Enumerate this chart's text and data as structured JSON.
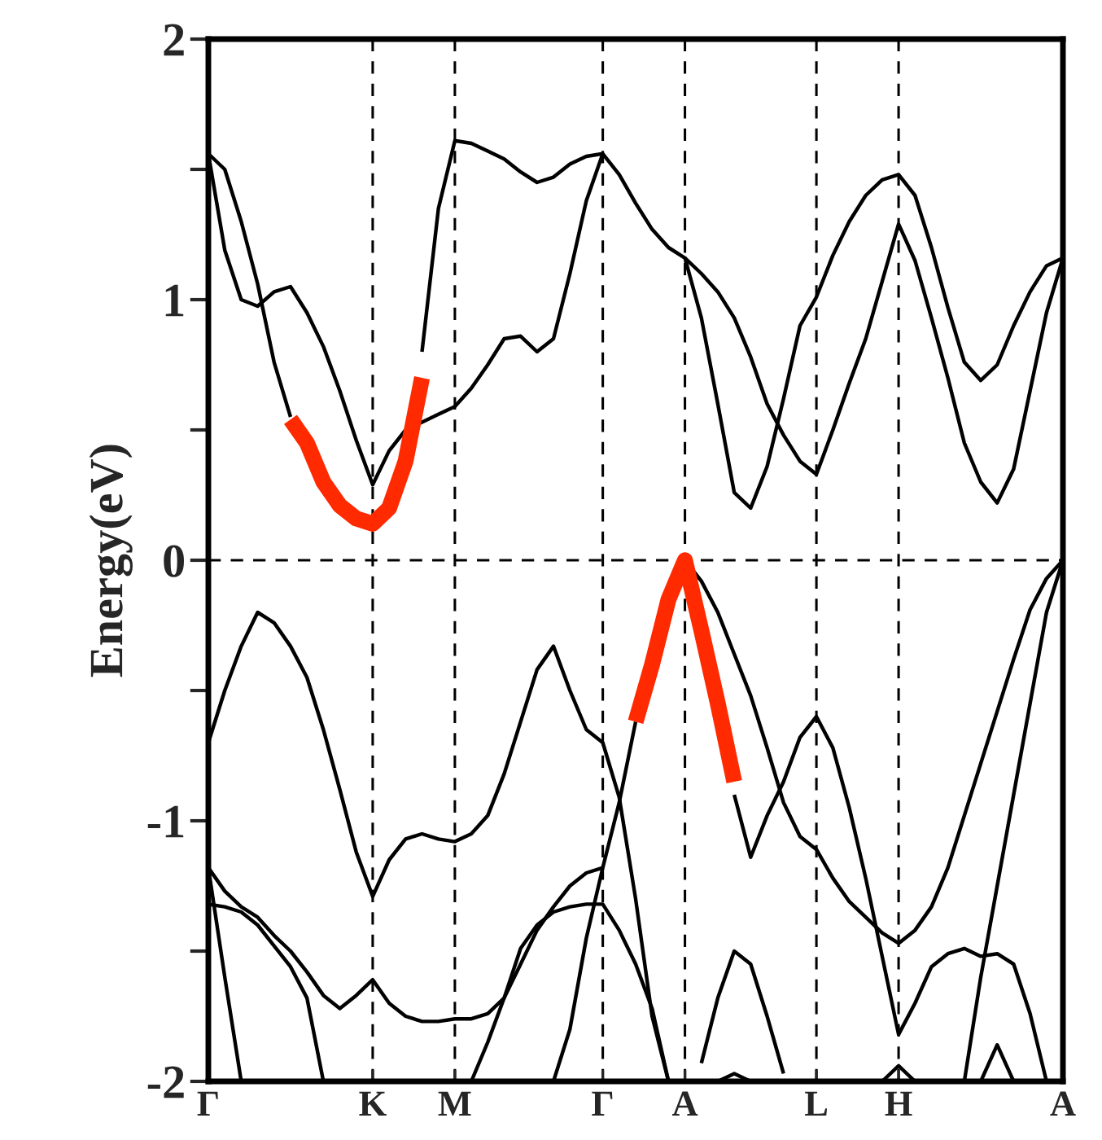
{
  "chart_data": {
    "type": "line",
    "ylabel": "Energy(eV)",
    "categories": [
      "Γ",
      null,
      null,
      null,
      null,
      null,
      null,
      null,
      null,
      null,
      "K",
      null,
      null,
      null,
      null,
      "M",
      null,
      null,
      null,
      null,
      null,
      null,
      null,
      null,
      "Γ",
      null,
      null,
      null,
      null,
      "A",
      null,
      null,
      null,
      null,
      null,
      null,
      null,
      "L",
      null,
      null,
      null,
      null,
      "H",
      null,
      null,
      null,
      null,
      null,
      null,
      null,
      null,
      null,
      "A"
    ],
    "ylim": [
      -2,
      2
    ],
    "yticks": [
      -2,
      {
        "value": -1.5,
        "label": null
      },
      -1,
      {
        "value": -0.5,
        "label": null
      },
      0,
      {
        "value": 0.5,
        "label": null
      },
      1,
      {
        "value": 1.5,
        "label": null
      },
      2
    ],
    "grid": "x",
    "line_style": "solid",
    "ref_lines": [
      {
        "axis": "y",
        "value": 0,
        "color": "#000000",
        "line_style": "dashed"
      }
    ],
    "series": [
      {
        "color": "#000000",
        "values": [
          1.56,
          1.19,
          1.0,
          0.975,
          1.03,
          1.05,
          0.95,
          0.82,
          0.65,
          0.46,
          0.29,
          0.42,
          0.5,
          0.53,
          0.56,
          0.59,
          0.66,
          0.75,
          0.85,
          0.86,
          0.8,
          0.85,
          1.1,
          1.38,
          1.56,
          1.48,
          1.37,
          1.27,
          1.2,
          1.16,
          0.93,
          0.6,
          0.26,
          0.2,
          0.36,
          0.62,
          0.9,
          1.01,
          1.17,
          1.3,
          1.4,
          1.46,
          1.48,
          1.4,
          1.2,
          0.97,
          0.76,
          0.69,
          0.75,
          0.9,
          1.03,
          1.13,
          1.16
        ]
      },
      {
        "color": "#000000",
        "values": [
          1.56,
          1.5,
          1.3,
          1.06,
          0.76,
          0.55,
          null,
          null,
          null,
          null,
          null,
          null,
          null,
          0.8,
          1.35,
          1.61,
          1.6,
          1.57,
          1.54,
          1.49,
          1.45,
          1.47,
          1.52,
          1.55,
          1.56,
          null,
          null,
          null,
          null,
          1.16,
          1.1,
          1.03,
          0.93,
          0.78,
          0.6,
          0.48,
          0.38,
          0.33,
          0.5,
          0.68,
          0.85,
          1.07,
          1.29,
          1.15,
          0.93,
          0.7,
          0.45,
          0.3,
          0.22,
          0.35,
          0.65,
          0.95,
          1.16
        ]
      },
      {
        "color": "#000000",
        "values": [
          -0.7,
          -0.5,
          -0.33,
          -0.2,
          -0.24,
          -0.33,
          -0.45,
          -0.65,
          -0.88,
          -1.12,
          -1.29,
          -1.15,
          -1.07,
          -1.05,
          -1.07,
          -1.08,
          -1.05,
          -0.98,
          -0.82,
          -0.62,
          -0.42,
          -0.33,
          -0.5,
          -0.65,
          -0.7,
          -0.91,
          -1.3,
          -1.75,
          -2,
          null,
          null,
          null,
          null,
          null,
          null,
          null,
          null,
          null,
          null,
          null,
          null,
          null,
          null,
          null,
          null,
          null,
          null,
          null,
          null,
          null,
          null,
          null,
          null
        ]
      },
      {
        "color": "#000000",
        "values": [
          -1.18,
          -1.27,
          -1.33,
          -1.37,
          -1.44,
          -1.5,
          -1.58,
          -1.67,
          -1.72,
          -1.67,
          -1.61,
          -1.7,
          -1.75,
          -1.77,
          -1.77,
          -1.76,
          -1.76,
          -1.74,
          -1.68,
          -1.55,
          -1.42,
          -1.33,
          -1.25,
          -1.2,
          -1.18,
          null,
          null,
          null,
          null,
          null,
          null,
          null,
          null,
          null,
          null,
          null,
          null,
          null,
          null,
          null,
          null,
          null,
          null,
          null,
          null,
          null,
          null,
          null,
          null,
          null,
          null,
          null,
          null
        ]
      },
      {
        "color": "#000000",
        "values": [
          -1.32,
          -1.33,
          -1.35,
          -1.4,
          -1.48,
          -1.56,
          -1.68,
          -2,
          null,
          null,
          null,
          null,
          null,
          null,
          null,
          null,
          null,
          null,
          null,
          null,
          null,
          null,
          null,
          null,
          null,
          null,
          null,
          null,
          null,
          null,
          null,
          null,
          null,
          null,
          null,
          null,
          null,
          null,
          null,
          null,
          null,
          null,
          null,
          null,
          null,
          null,
          null,
          null,
          null,
          null,
          null,
          null,
          null
        ]
      },
      {
        "color": "#000000",
        "values": [
          null,
          null,
          null,
          null,
          null,
          null,
          null,
          null,
          null,
          null,
          null,
          null,
          null,
          null,
          null,
          null,
          -2,
          -1.85,
          -1.68,
          -1.49,
          -1.4,
          -1.35,
          -1.33,
          -1.32,
          -1.32,
          -1.42,
          -1.55,
          -1.72,
          -2,
          null,
          null,
          null,
          null,
          null,
          null,
          null,
          null,
          null,
          null,
          null,
          null,
          null,
          null,
          null,
          null,
          null,
          null,
          null,
          null,
          null,
          null,
          null,
          null
        ]
      },
      {
        "color": "#000000",
        "values": [
          -1.18,
          -1.6,
          -2,
          null,
          null,
          null,
          null,
          null,
          null,
          null,
          null,
          null,
          null,
          null,
          null,
          null,
          null,
          null,
          null,
          null,
          null,
          null,
          null,
          null,
          null,
          null,
          null,
          null,
          null,
          null,
          null,
          null,
          null,
          null,
          null,
          null,
          null,
          null,
          null,
          null,
          null,
          null,
          null,
          null,
          null,
          null,
          null,
          null,
          null,
          null,
          null,
          null,
          null
        ]
      },
      {
        "color": "#000000",
        "values": [
          null,
          null,
          null,
          null,
          null,
          null,
          null,
          null,
          null,
          null,
          null,
          null,
          null,
          null,
          null,
          null,
          null,
          null,
          null,
          null,
          null,
          -2,
          -1.8,
          -1.45,
          -1.18,
          -0.93,
          -0.62,
          null,
          null,
          null,
          null,
          null,
          null,
          null,
          null,
          null,
          null,
          null,
          null,
          null,
          null,
          null,
          null,
          null,
          null,
          null,
          null,
          null,
          null,
          null,
          null,
          null,
          null
        ]
      },
      {
        "color": "#000000",
        "values": [
          null,
          null,
          null,
          null,
          null,
          null,
          null,
          null,
          null,
          null,
          null,
          null,
          null,
          null,
          null,
          null,
          null,
          null,
          null,
          null,
          null,
          null,
          null,
          null,
          null,
          null,
          null,
          null,
          null,
          null,
          null,
          null,
          -0.9,
          -1.14,
          -0.98,
          -0.85,
          -0.68,
          -0.6,
          -0.72,
          -0.95,
          -1.22,
          -1.52,
          -1.82,
          -1.7,
          -1.56,
          -1.51,
          -1.49,
          -1.52,
          -1.51,
          -1.55,
          -1.74,
          -2,
          null
        ]
      },
      {
        "color": "#000000",
        "values": [
          null,
          null,
          null,
          null,
          null,
          null,
          null,
          null,
          null,
          null,
          null,
          null,
          null,
          null,
          null,
          null,
          null,
          null,
          null,
          null,
          null,
          null,
          null,
          null,
          null,
          null,
          null,
          null,
          null,
          0,
          -0.08,
          -0.2,
          -0.36,
          -0.52,
          -0.72,
          -0.93,
          -1.06,
          -1.11,
          -1.22,
          -1.31,
          -1.37,
          -1.43,
          -1.47,
          -1.42,
          -1.33,
          -1.18,
          -0.98,
          -0.78,
          -0.58,
          -0.38,
          -0.19,
          -0.07,
          0
        ]
      },
      {
        "color": "#000000",
        "values": [
          null,
          null,
          null,
          null,
          null,
          null,
          null,
          null,
          null,
          null,
          null,
          null,
          null,
          null,
          null,
          null,
          null,
          null,
          null,
          null,
          null,
          null,
          null,
          null,
          null,
          null,
          null,
          null,
          null,
          null,
          null,
          null,
          null,
          null,
          null,
          null,
          null,
          null,
          null,
          null,
          null,
          null,
          null,
          null,
          null,
          null,
          -2,
          -1.6,
          -1.25,
          -0.9,
          -0.55,
          -0.2,
          0
        ]
      },
      {
        "color": "#000000",
        "values": [
          null,
          null,
          null,
          null,
          null,
          null,
          null,
          null,
          null,
          null,
          null,
          null,
          null,
          null,
          null,
          null,
          null,
          null,
          null,
          null,
          null,
          null,
          null,
          null,
          null,
          null,
          null,
          null,
          null,
          null,
          -1.93,
          -1.68,
          -1.5,
          -1.55,
          -1.75,
          -1.97,
          null,
          null,
          null,
          null,
          null,
          null,
          null,
          null,
          null,
          null,
          null,
          null,
          null,
          null,
          null,
          null,
          null
        ]
      },
      {
        "color": "#000000",
        "values": [
          null,
          null,
          null,
          null,
          null,
          null,
          null,
          null,
          null,
          null,
          null,
          null,
          null,
          null,
          null,
          null,
          null,
          null,
          null,
          null,
          null,
          null,
          null,
          null,
          null,
          null,
          null,
          null,
          null,
          null,
          null,
          -2,
          -1.97,
          -2,
          null,
          null,
          null,
          null,
          null,
          null,
          null,
          null,
          null,
          null,
          null,
          null,
          null,
          null,
          null,
          null,
          null,
          null,
          null
        ]
      },
      {
        "color": "#000000",
        "values": [
          null,
          null,
          null,
          null,
          null,
          null,
          null,
          null,
          null,
          null,
          null,
          null,
          null,
          null,
          null,
          null,
          null,
          null,
          null,
          null,
          null,
          null,
          null,
          null,
          null,
          null,
          null,
          null,
          null,
          null,
          null,
          null,
          null,
          null,
          null,
          null,
          null,
          null,
          null,
          null,
          null,
          -2,
          -1.94,
          -2,
          null,
          null,
          null,
          null,
          null,
          null,
          null,
          null,
          null
        ]
      },
      {
        "color": "#000000",
        "values": [
          null,
          null,
          null,
          null,
          null,
          null,
          null,
          null,
          null,
          null,
          null,
          null,
          null,
          null,
          null,
          null,
          null,
          null,
          null,
          null,
          null,
          null,
          null,
          null,
          null,
          null,
          null,
          null,
          null,
          null,
          null,
          null,
          null,
          null,
          null,
          null,
          null,
          null,
          null,
          null,
          null,
          null,
          null,
          null,
          null,
          null,
          null,
          -2,
          -1.86,
          -2,
          null,
          null,
          null
        ]
      },
      {
        "color": "#ff2a00",
        "values": [
          null,
          null,
          null,
          null,
          null,
          0.54,
          0.45,
          0.3,
          0.21,
          0.16,
          0.14,
          0.2,
          0.38,
          0.7,
          null,
          null,
          null,
          null,
          null,
          null,
          null,
          null,
          null,
          null,
          null,
          null,
          null,
          null,
          null,
          null,
          null,
          null,
          null,
          null,
          null,
          null,
          null,
          null,
          null,
          null,
          null,
          null,
          null,
          null,
          null,
          null,
          null,
          null,
          null,
          null,
          null,
          null,
          null
        ]
      },
      {
        "color": "#ff2a00",
        "values": [
          null,
          null,
          null,
          null,
          null,
          null,
          null,
          null,
          null,
          null,
          null,
          null,
          null,
          null,
          null,
          null,
          null,
          null,
          null,
          null,
          null,
          null,
          null,
          null,
          null,
          null,
          -0.62,
          -0.4,
          -0.15,
          0,
          -0.27,
          -0.55,
          -0.85,
          null,
          null,
          null,
          null,
          null,
          null,
          null,
          null,
          null,
          null,
          null,
          null,
          null,
          null,
          null,
          null,
          null,
          null,
          null,
          null
        ]
      }
    ]
  }
}
